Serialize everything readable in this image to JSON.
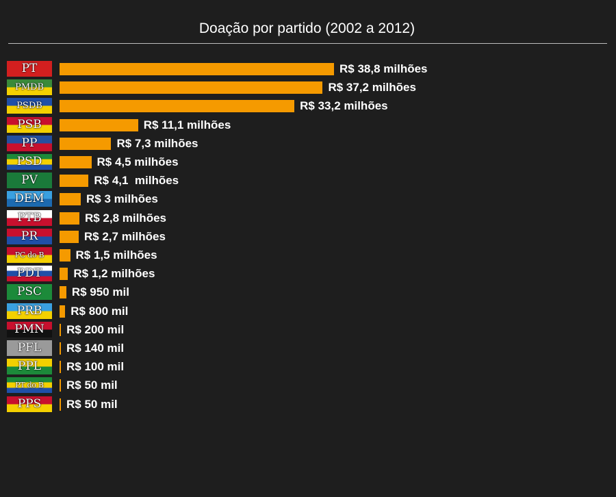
{
  "chart_data": {
    "type": "bar",
    "orientation": "horizontal",
    "title": "Doação por partido (2002 a 2012)",
    "xlabel": "",
    "ylabel": "",
    "unit": "R$ milhões",
    "bar_color": "#f59a00",
    "categories": [
      "PT",
      "PMDB",
      "PSDB",
      "PSB",
      "PP",
      "PSD",
      "PV",
      "DEM",
      "PTB",
      "PR",
      "PC do B",
      "PDT",
      "PSC",
      "PRB",
      "PMN",
      "PFL",
      "PPL",
      "PT do B",
      "PPS"
    ],
    "values": [
      38.8,
      37.2,
      33.2,
      11.1,
      7.3,
      4.5,
      4.1,
      3,
      2.8,
      2.7,
      1.5,
      1.2,
      0.95,
      0.8,
      0.2,
      0.14,
      0.1,
      0.05,
      0.05
    ],
    "labels": [
      "R$ 38,8 milhões",
      "R$ 37,2 milhões",
      "R$ 33,2 milhões",
      "R$ 11,1 milhões",
      "R$ 7,3 milhões",
      "R$ 4,5 milhões",
      "R$ 4,1  milhões",
      "R$ 3 milhões",
      "R$ 2,8 milhões",
      "R$ 2,7 milhões",
      "R$ 1,5 milhões",
      "R$ 1,2 milhões",
      "R$ 950 mil",
      "R$ 800 mil",
      "R$ 200 mil",
      "R$ 140 mil",
      "R$ 100 mil",
      "R$ 50 mil",
      "R$ 50 mil"
    ],
    "party_colors": [
      [
        "#d21f1f"
      ],
      [
        "#3a8a3a",
        "#f4d000"
      ],
      [
        "#1f4fa8",
        "#f4d000"
      ],
      [
        "#c8102e",
        "#f4d000"
      ],
      [
        "#2450a0",
        "#c8102e"
      ],
      [
        "#1c8a3a",
        "#f4d000",
        "#1f4fa8"
      ],
      [
        "#1a7a3a"
      ],
      [
        "#3aa0e0",
        "#1c6ab0"
      ],
      [
        "#ffffff",
        "#c8102e"
      ],
      [
        "#c8102e",
        "#1f4fa8"
      ],
      [
        "#c8102e",
        "#f4d000"
      ],
      [
        "#ffffff",
        "#1f4fa8",
        "#c8102e"
      ],
      [
        "#1c8a3a"
      ],
      [
        "#3aa0e0",
        "#f4d000"
      ],
      [
        "#c8102e",
        "#111111"
      ],
      [
        "#9a9a9a"
      ],
      [
        "#f4d000",
        "#1c8a3a"
      ],
      [
        "#1c8a3a",
        "#f4d000",
        "#1f4fa8"
      ],
      [
        "#c8102e",
        "#f4d000"
      ]
    ],
    "xlim": [
      0,
      38.8
    ],
    "grid": false,
    "legend": "none"
  }
}
